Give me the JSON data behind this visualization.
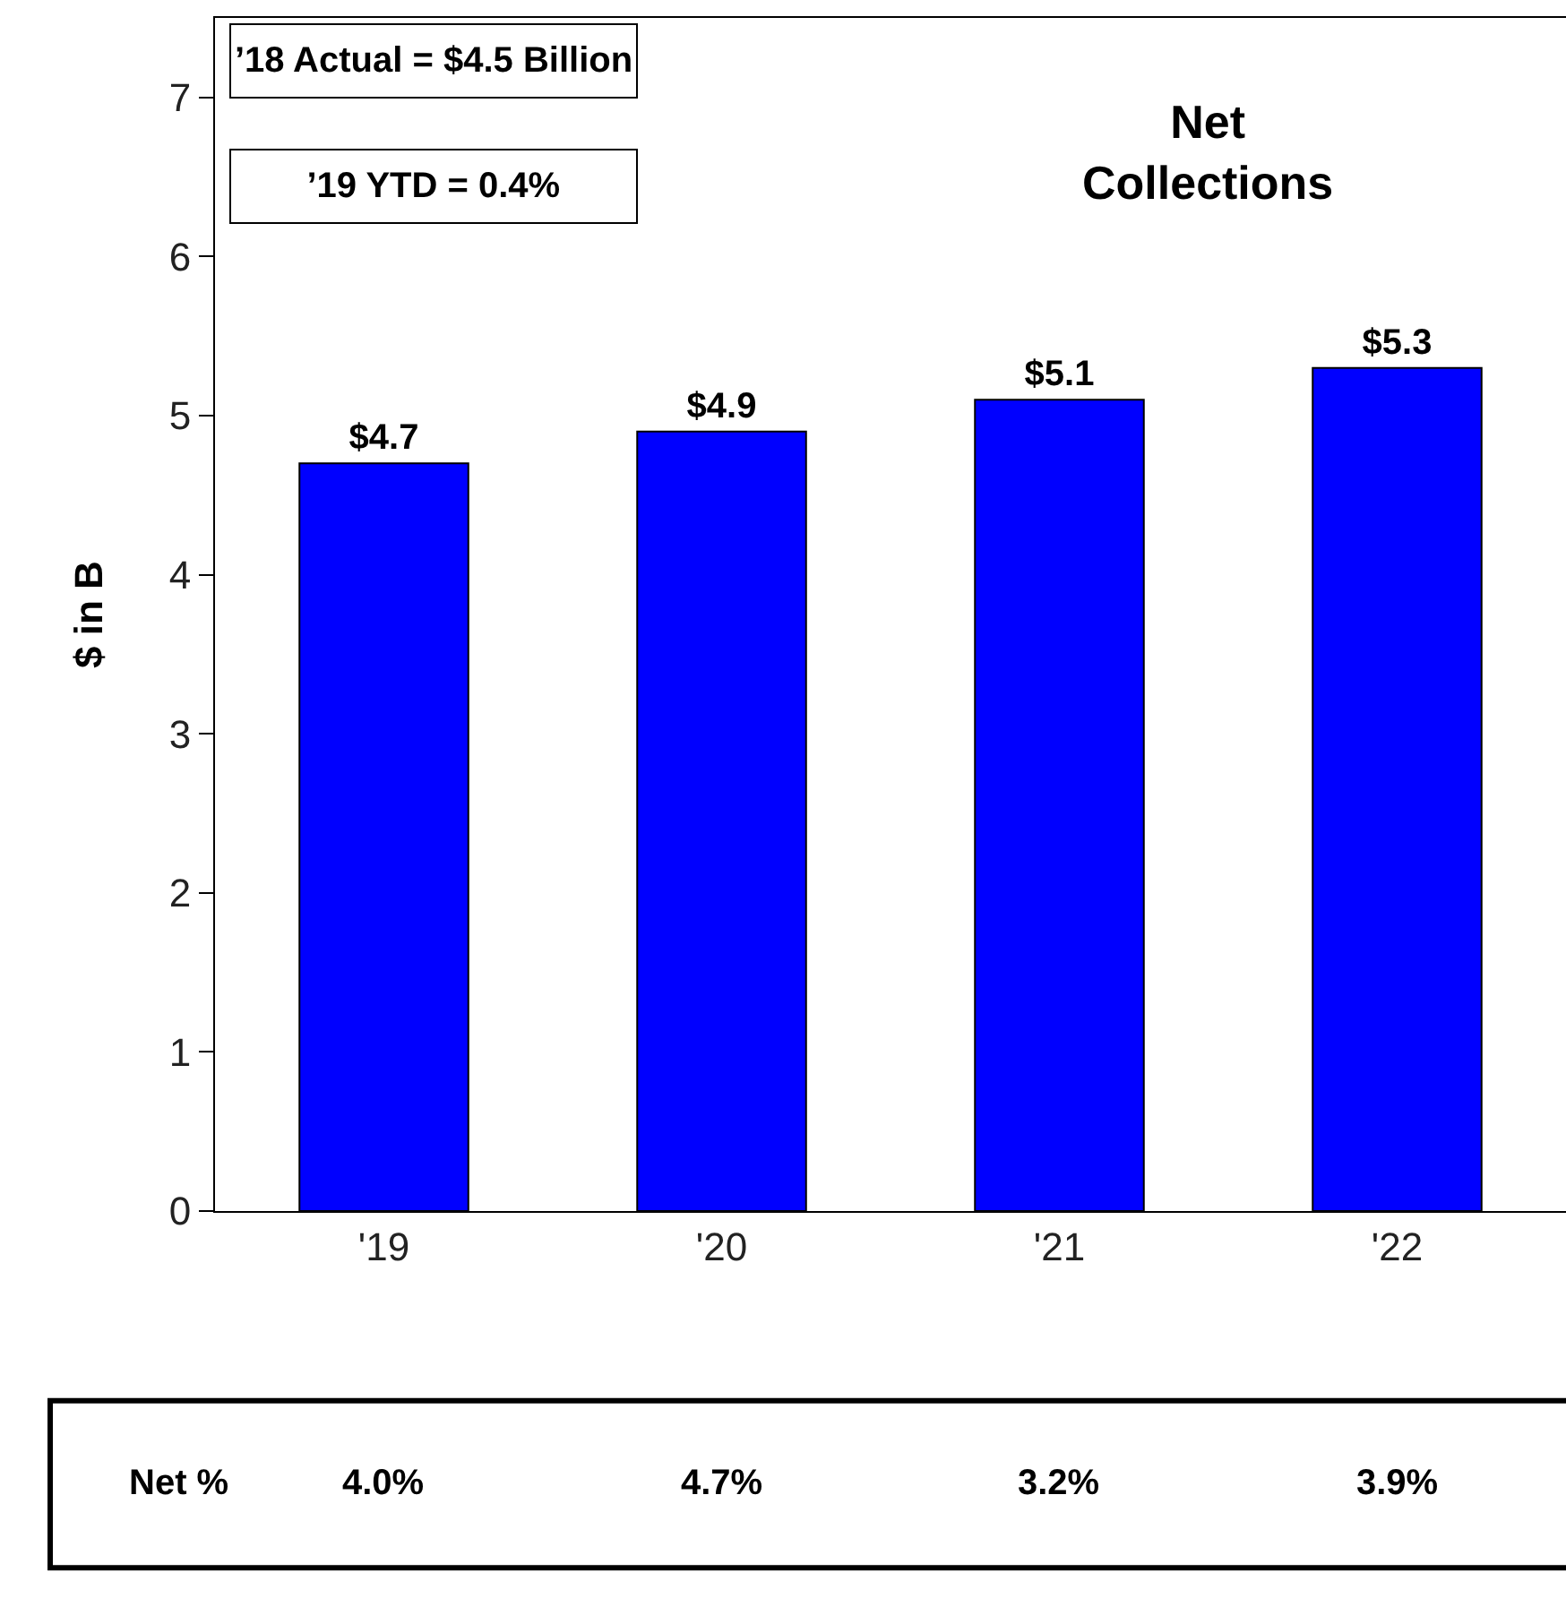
{
  "chart_data": {
    "type": "bar",
    "title": "Net Collections",
    "ylabel": "$ in B",
    "categories": [
      "'19",
      "'20",
      "'21",
      "'22"
    ],
    "values": [
      4.7,
      4.9,
      5.1,
      5.3
    ],
    "value_labels": [
      "$4.7",
      "$4.9",
      "$5.1",
      "$5.3"
    ],
    "color": "#0000ff",
    "ylim": [
      0,
      7.5
    ],
    "yticks": [
      0,
      1,
      2,
      3,
      4,
      5,
      6,
      7
    ],
    "annotations": [
      "’18 Actual = $4.5 Billion",
      "’19 YTD = 0.4%",
      "Net %",
      "4.0%",
      "4.7%",
      "3.2%",
      "3.9%"
    ]
  }
}
